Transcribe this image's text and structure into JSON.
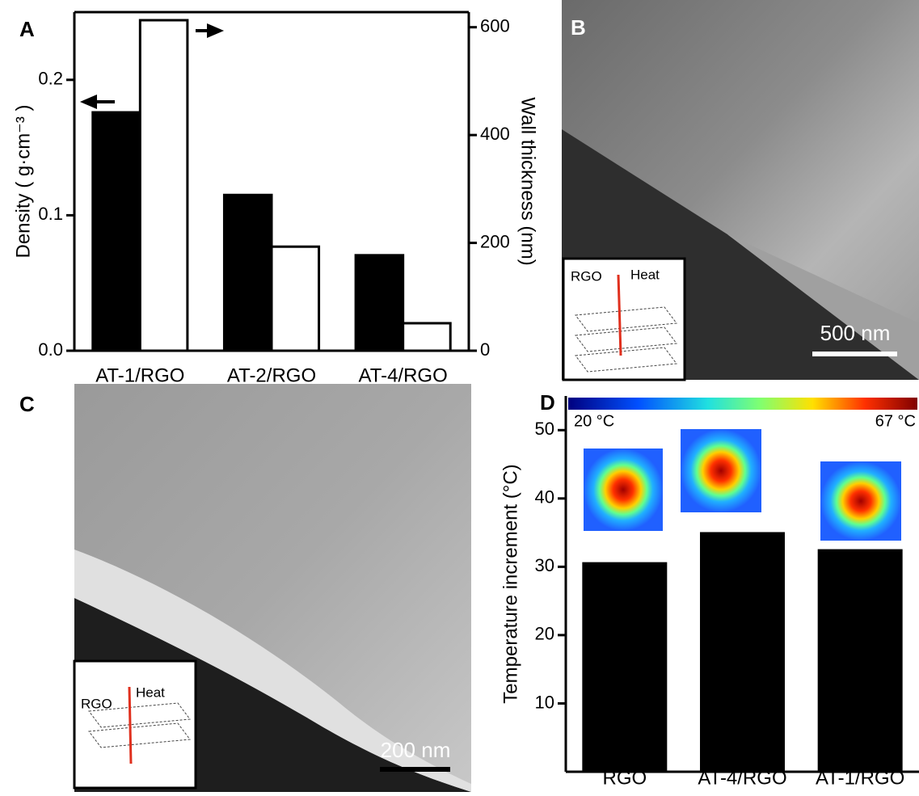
{
  "chart_data": [
    {
      "type": "bar",
      "label": "A",
      "categories": [
        "AT-1/RGO",
        "AT-2/RGO",
        "AT-4/RGO"
      ],
      "ylabel": "Density ( g·cm⁻³ )",
      "y2label": "Wall thickness (nm)",
      "ylim": [
        0,
        0.25
      ],
      "yticks": [
        {
          "value": 0,
          "label": "0.0"
        },
        0.1,
        0.2
      ],
      "y2lim": [
        0,
        628
      ],
      "y2ticks": [
        0,
        200,
        400,
        600
      ],
      "series": [
        {
          "color": "#000000",
          "values": [
            0.176,
            0.115,
            0.0705
          ]
        },
        {
          "color": "#ffffff",
          "axis": "y2",
          "values": [
            613,
            193,
            51
          ]
        }
      ]
    },
    {
      "type": "bar",
      "label": "D",
      "categories": [
        "RGO",
        "AT-4/RGO",
        "AT-1/RGO"
      ],
      "values": [
        30.5,
        34.9,
        32.4
      ],
      "color": "#000000",
      "ylabel": "Temperature increment (°C)",
      "ylim": [
        0,
        55
      ],
      "yticks": [
        10,
        20,
        30,
        40,
        50
      ],
      "colorbar_labels": [
        "20 °C",
        "67 °C"
      ]
    }
  ],
  "panels": [
    {
      "label": "B",
      "scale_bar": "500 nm",
      "inset_labels": [
        "RGO",
        "Heat"
      ]
    },
    {
      "label": "C",
      "scale_bar": "200 nm",
      "inset_labels": [
        "RGO",
        "Heat"
      ]
    }
  ]
}
